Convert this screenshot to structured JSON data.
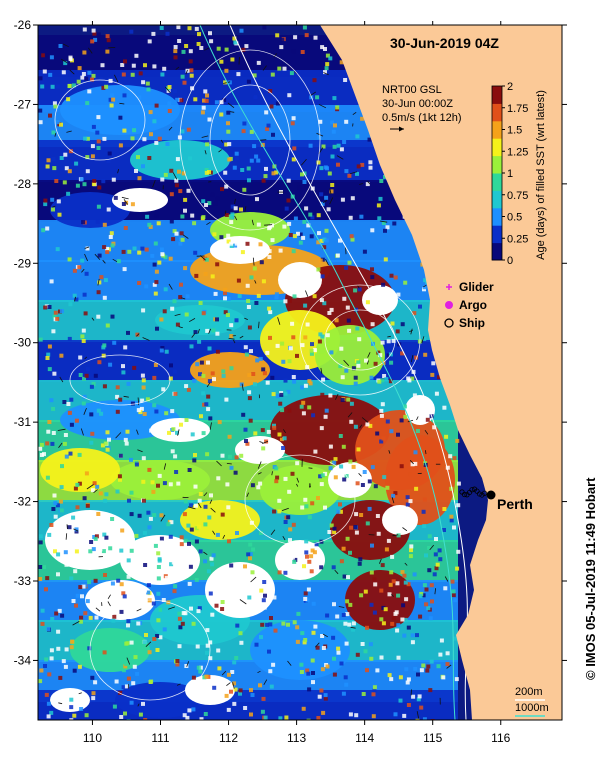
{
  "title": "30-Jun-2019 04Z",
  "product": {
    "line1": "NRT00 GSL",
    "line2": "30-Jun 00:00Z",
    "line3": "0.5m/s (1kt 12h)"
  },
  "colorbar": {
    "label": "Age (days) of filled SST (wrt latest)",
    "ticks": [
      "0",
      "0.25",
      "0.5",
      "0.75",
      "1",
      "1.25",
      "1.5",
      "1.75",
      "2"
    ],
    "range": [
      0,
      2
    ],
    "colors": [
      "#08087a",
      "#0a2fc8",
      "#1e90ff",
      "#1fc8d0",
      "#2fd89a",
      "#9bf03a",
      "#f5f21a",
      "#f5a21a",
      "#e0501a",
      "#8a0d0d"
    ]
  },
  "legend": {
    "glider": "Glider",
    "argo": "Argo",
    "ship": "Ship"
  },
  "place": {
    "name": "Perth",
    "lon": 115.86,
    "lat": -31.95
  },
  "axes": {
    "lon_ticks": [
      "110",
      "111",
      "112",
      "113",
      "114",
      "115",
      "116"
    ],
    "lat_ticks": [
      "-26",
      "-27",
      "-28",
      "-29",
      "-30",
      "-31",
      "-32",
      "-33",
      "-34"
    ],
    "lon_range": [
      109.2,
      116.9
    ],
    "lat_range": [
      -26.0,
      -34.75
    ]
  },
  "isobaths": {
    "label_200": "200m",
    "label_1000": "1000m",
    "color_200": "#ffffff",
    "color_1000": "#40e0d0"
  },
  "colors": {
    "land": "#fbc997",
    "missing": "#ffffff",
    "deep": "#0c1a82"
  },
  "credit": "© IMOS 05-Jul-2019 11:49 Hobart"
}
